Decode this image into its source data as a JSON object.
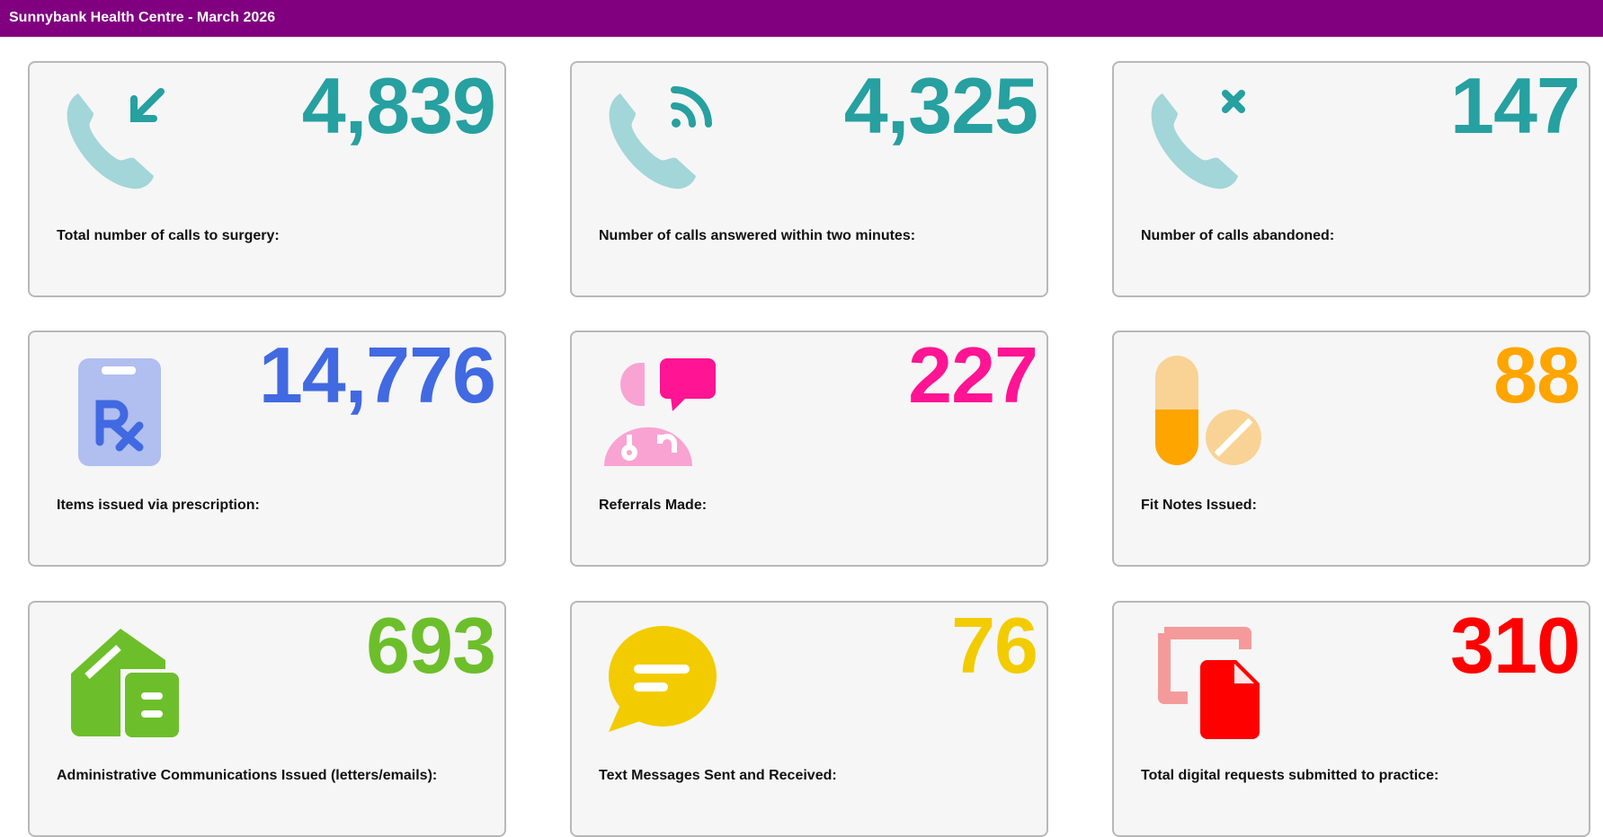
{
  "header": {
    "title": "Sunnybank Health Centre - March 2026"
  },
  "cards": [
    {
      "value": "4,839",
      "label": "Total number of calls to surgery:",
      "color": "#26a0a0"
    },
    {
      "value": "4,325",
      "label": "Number of calls answered within two minutes:",
      "color": "#26a0a0"
    },
    {
      "value": "147",
      "label": "Number of calls abandoned:",
      "color": "#26a0a0"
    },
    {
      "value": "14,776",
      "label": "Items issued via prescription:",
      "color": "#4169e1"
    },
    {
      "value": "227",
      "label": "Referrals Made:",
      "color": "#ff1493"
    },
    {
      "value": "88",
      "label": "Fit Notes Issued:",
      "color": "#ffa500"
    },
    {
      "value": "693",
      "label": "Administrative Communications Issued (letters/emails):",
      "color": "#6cbf2a"
    },
    {
      "value": "76",
      "label": "Text Messages Sent and Received:",
      "color": "#f2cc00"
    },
    {
      "value": "310",
      "label": "Total digital requests submitted to practice:",
      "color": "#ff0000"
    }
  ]
}
